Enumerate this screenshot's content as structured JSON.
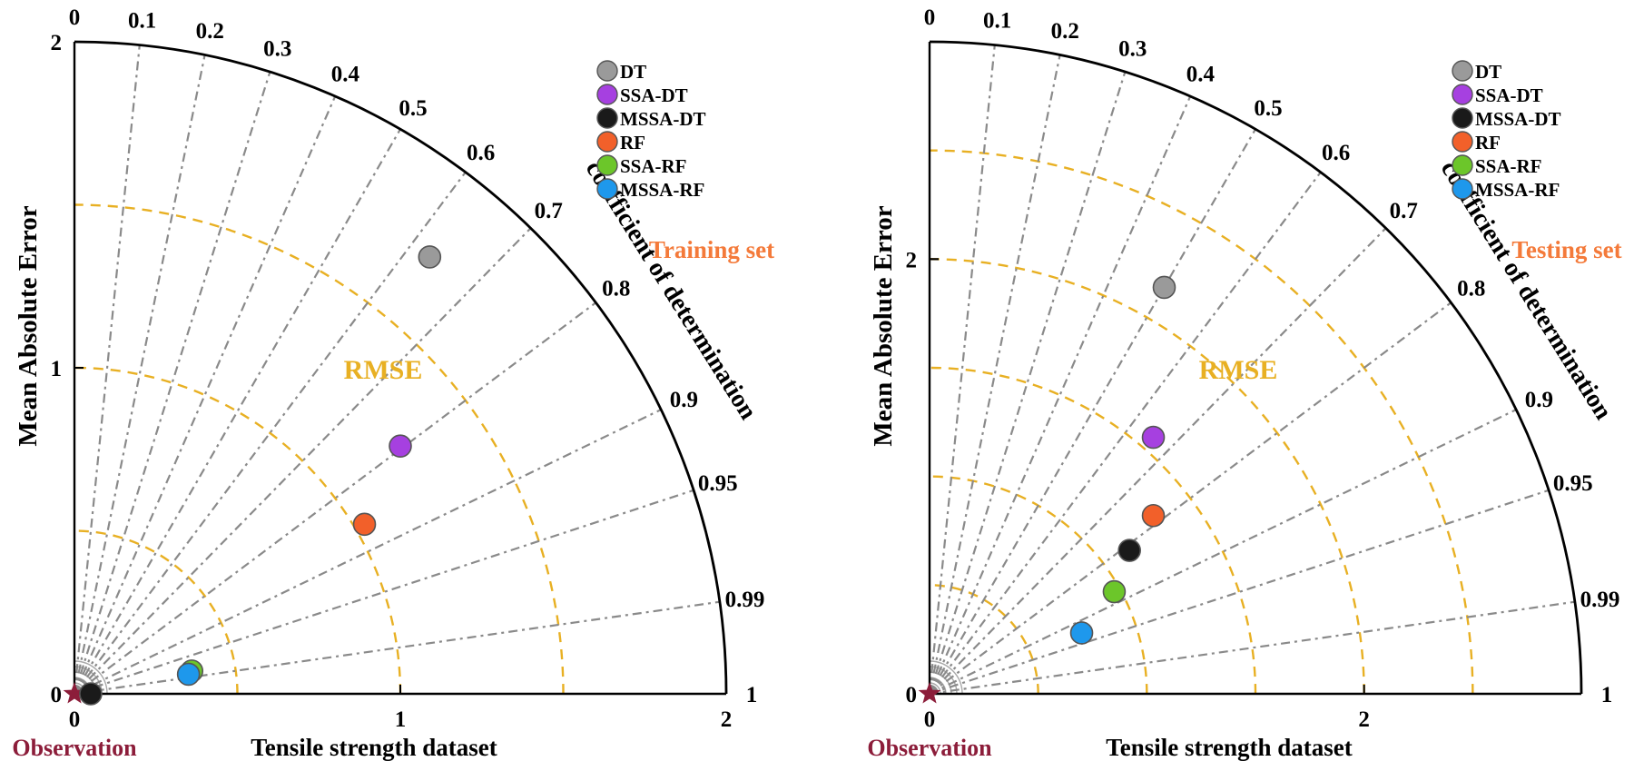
{
  "chart_data": [
    {
      "type": "scatter",
      "subtype": "taylor-like polar diagram",
      "annotation": "Training set",
      "xlabel": "Tensile strength dataset",
      "ylabel": "Mean Absolute Error",
      "arc_label": "coefficient of determination",
      "rmse_label": "RMSE",
      "observation_label": "Observation",
      "xlim": [
        0,
        2
      ],
      "ylim": [
        0,
        2
      ],
      "x_ticks": [
        "0",
        "1",
        "2"
      ],
      "y_ticks": [
        "0",
        "1",
        "2"
      ],
      "radial_ticks": [
        "0",
        "0.1",
        "0.2",
        "0.3",
        "0.4",
        "0.5",
        "0.6",
        "0.7",
        "0.8",
        "0.9",
        "0.95",
        "0.99",
        "1"
      ],
      "rmse_radii": [
        0.5,
        1.0,
        1.5
      ],
      "series": [
        {
          "name": "DT",
          "x": 1.09,
          "y": 1.34
        },
        {
          "name": "SSA-DT",
          "x": 1.0,
          "y": 0.76
        },
        {
          "name": "MSSA-DT",
          "x": 0.05,
          "y": 0.0
        },
        {
          "name": "RF",
          "x": 0.89,
          "y": 0.52
        },
        {
          "name": "SSA-RF",
          "x": 0.36,
          "y": 0.07
        },
        {
          "name": "MSSA-RF",
          "x": 0.35,
          "y": 0.06
        }
      ]
    },
    {
      "type": "scatter",
      "subtype": "taylor-like polar diagram",
      "annotation": "Testing set",
      "xlabel": "Tensile strength dataset",
      "ylabel": "Mean Absolute Error",
      "arc_label": "coefficient of determination",
      "rmse_label": "RMSE",
      "observation_label": "Observation",
      "xlim": [
        0,
        3
      ],
      "ylim": [
        0,
        3
      ],
      "x_ticks": [
        "0",
        "2"
      ],
      "y_ticks": [
        "0",
        "2"
      ],
      "radial_ticks": [
        "0",
        "0.1",
        "0.2",
        "0.3",
        "0.4",
        "0.5",
        "0.6",
        "0.7",
        "0.8",
        "0.9",
        "0.95",
        "0.99",
        "1"
      ],
      "rmse_radii": [
        0.5,
        1.0,
        1.5,
        2.0,
        2.5
      ],
      "series": [
        {
          "name": "DT",
          "x": 1.08,
          "y": 1.87
        },
        {
          "name": "SSA-DT",
          "x": 1.03,
          "y": 1.18
        },
        {
          "name": "MSSA-DT",
          "x": 0.92,
          "y": 0.66
        },
        {
          "name": "RF",
          "x": 1.03,
          "y": 0.82
        },
        {
          "name": "SSA-RF",
          "x": 0.85,
          "y": 0.47
        },
        {
          "name": "MSSA-RF",
          "x": 0.7,
          "y": 0.28
        }
      ]
    }
  ],
  "colors": {
    "DT": "#9a9a9a",
    "SSA-DT": "#a640e0",
    "MSSA-DT": "#1a1a1a",
    "RF": "#f2602a",
    "SSA-RF": "#6cc62a",
    "MSSA-RF": "#1e98ec",
    "rmse": "#e8b023",
    "annotation": "#f47a3a",
    "observation": "#8c1d3a",
    "spoke": "#8a8a8a"
  }
}
